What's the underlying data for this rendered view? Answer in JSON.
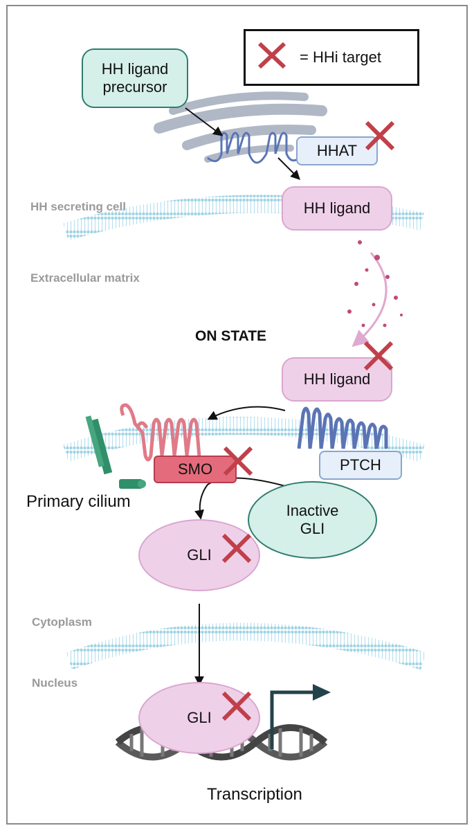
{
  "legend": {
    "text": "= HHi target"
  },
  "nodes": {
    "precursor": "HH ligand\nprecursor",
    "hhat": "HHAT",
    "ligand_top": "HH ligand",
    "ligand_bottom": "HH ligand",
    "smo": "SMO",
    "ptch": "PTCH",
    "inactive_gli": "Inactive\nGLI",
    "gli_cyto": "GLI",
    "gli_nuc": "GLI"
  },
  "regions": {
    "secreting": "HH secreting cell",
    "matrix": "Extracellular matrix",
    "cytoplasm": "Cytoplasm",
    "nucleus": "Nucleus"
  },
  "state_title": "ON STATE",
  "cilium_label": "Primary cilium",
  "transcription_label": "Transcription",
  "colors": {
    "target_x": "#c0404a",
    "membrane": "#9fd3e4",
    "golgi": "#b0b8c6",
    "receptor_blue": "#5b74b5",
    "smo_pink": "#e07a88",
    "cilium_green": "#2f8f6a",
    "dna_grey": "#5a5a5a",
    "secretion_dots": "#c24a74"
  }
}
